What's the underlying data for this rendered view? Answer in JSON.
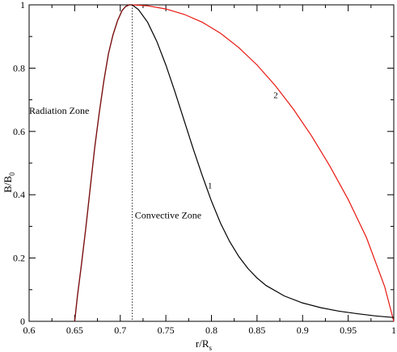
{
  "chart_data": {
    "type": "line",
    "xlabel": "r/R",
    "xlabel_sub": "s",
    "ylabel": "B/B",
    "ylabel_sub": "0",
    "xlim": [
      0.6,
      1.0
    ],
    "ylim": [
      0,
      1.0
    ],
    "x_ticks": [
      "0.6",
      "0.65",
      "0.7",
      "0.75",
      "0.8",
      "0.85",
      "0.9",
      "0.95",
      "1"
    ],
    "y_ticks": [
      "0",
      "0.2",
      "0.4",
      "0.6",
      "0.8",
      "1"
    ],
    "grid": false,
    "legend": "none",
    "colors": {
      "series_1": "#000000",
      "series_2": "#e8170f",
      "overlap": "#7a1010"
    },
    "vertical_marker": {
      "x": 0.713,
      "style": "dotted"
    },
    "annotations": {
      "radiation_zone": "Radiation Zone",
      "convective_zone": "Convective Zone",
      "curve_1_label": "1",
      "curve_2_label": "2"
    },
    "annotation_anchors": {
      "radiation_zone": [
        0.6,
        0.655
      ],
      "convective_zone": [
        0.716,
        0.325
      ],
      "curve_1_label": [
        0.796,
        0.42
      ],
      "curve_2_label": [
        0.868,
        0.705
      ]
    },
    "shared_rise": {
      "x": [
        0.65,
        0.653,
        0.657,
        0.662,
        0.667,
        0.672,
        0.677,
        0.682,
        0.687,
        0.692,
        0.697,
        0.702,
        0.706,
        0.71,
        0.713
      ],
      "y": [
        0.0,
        0.08,
        0.17,
        0.29,
        0.42,
        0.55,
        0.66,
        0.76,
        0.845,
        0.905,
        0.95,
        0.982,
        0.995,
        1.0,
        1.0
      ]
    },
    "series": [
      {
        "x": [
          0.713,
          0.72,
          0.73,
          0.74,
          0.75,
          0.76,
          0.77,
          0.78,
          0.79,
          0.8,
          0.81,
          0.82,
          0.83,
          0.84,
          0.85,
          0.86,
          0.88,
          0.9,
          0.92,
          0.94,
          0.96,
          0.98,
          1.0
        ],
        "y": [
          1.0,
          0.985,
          0.945,
          0.885,
          0.81,
          0.725,
          0.635,
          0.545,
          0.46,
          0.38,
          0.31,
          0.252,
          0.205,
          0.167,
          0.137,
          0.113,
          0.08,
          0.058,
          0.043,
          0.032,
          0.024,
          0.017,
          0.012
        ]
      },
      {
        "x": [
          0.713,
          0.73,
          0.75,
          0.77,
          0.79,
          0.81,
          0.83,
          0.85,
          0.87,
          0.89,
          0.91,
          0.93,
          0.95,
          0.97,
          0.99,
          1.0
        ],
        "y": [
          1.0,
          0.997,
          0.987,
          0.97,
          0.945,
          0.91,
          0.865,
          0.81,
          0.745,
          0.67,
          0.585,
          0.49,
          0.385,
          0.265,
          0.11,
          0.0
        ]
      }
    ]
  }
}
